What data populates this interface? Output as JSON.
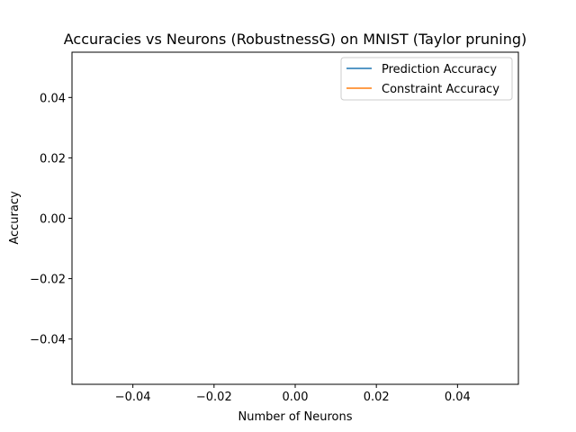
{
  "chart_data": {
    "type": "line",
    "title": "Accuracies vs Neurons (RobustnessG) on MNIST (Taylor pruning)",
    "xlabel": "Number of Neurons",
    "ylabel": "Accuracy",
    "xlim": [
      -0.055,
      0.055
    ],
    "ylim": [
      -0.055,
      0.055
    ],
    "xticks": [
      {
        "value": -0.04,
        "label": "−0.04"
      },
      {
        "value": -0.02,
        "label": "−0.02"
      },
      {
        "value": 0.0,
        "label": "0.00"
      },
      {
        "value": 0.02,
        "label": "0.02"
      },
      {
        "value": 0.04,
        "label": "0.04"
      }
    ],
    "yticks": [
      {
        "value": -0.04,
        "label": "−0.04"
      },
      {
        "value": -0.02,
        "label": "−0.02"
      },
      {
        "value": 0.0,
        "label": "0.00"
      },
      {
        "value": 0.02,
        "label": "0.02"
      },
      {
        "value": 0.04,
        "label": "0.04"
      }
    ],
    "grid": false,
    "legend_position": "top-right",
    "series": [
      {
        "name": "Prediction Accuracy",
        "color": "#1f77b4",
        "x": [],
        "y": []
      },
      {
        "name": "Constraint Accuracy",
        "color": "#ff7f0e",
        "x": [],
        "y": []
      }
    ]
  }
}
